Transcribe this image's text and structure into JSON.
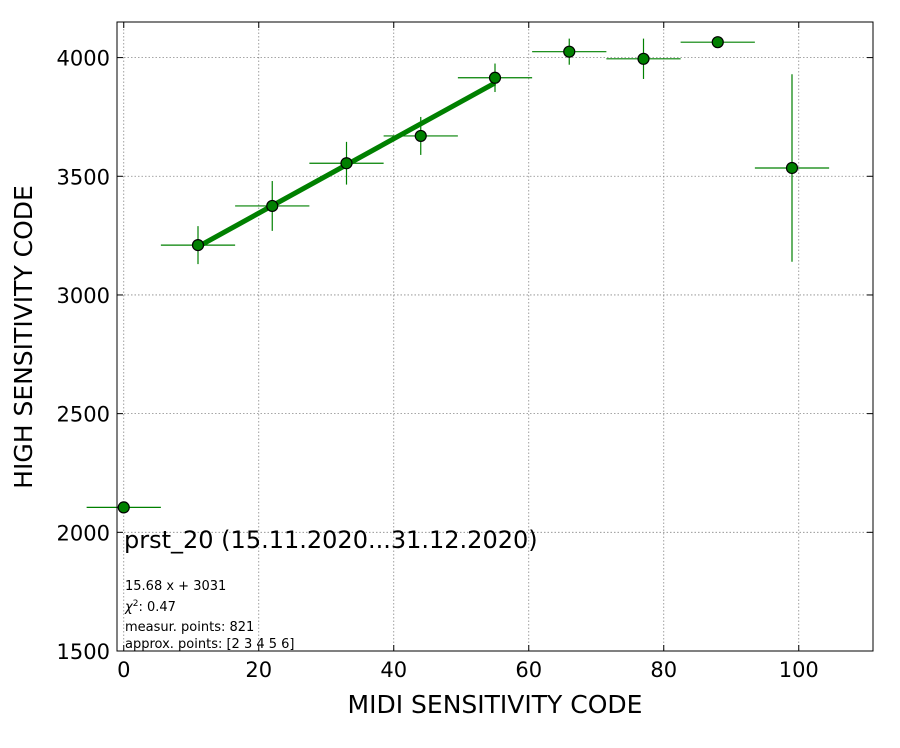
{
  "chart_data": {
    "type": "scatter",
    "xlabel": "MIDI SENSITIVITY CODE",
    "ylabel": "HIGH SENSITIVITY CODE",
    "xlim": [
      -1,
      111
    ],
    "ylim": [
      1500,
      4150
    ],
    "x_ticks": [
      0,
      20,
      40,
      60,
      80,
      100
    ],
    "y_ticks": [
      1500,
      2000,
      2500,
      3000,
      3500,
      4000
    ],
    "grid": true,
    "points": [
      {
        "x": 0,
        "y": 2105,
        "xerr": 5.5,
        "yerr": 0
      },
      {
        "x": 11,
        "y": 3210,
        "xerr": 5.5,
        "yerr": 80
      },
      {
        "x": 22,
        "y": 3375,
        "xerr": 5.5,
        "yerr": 105
      },
      {
        "x": 33,
        "y": 3555,
        "xerr": 5.5,
        "yerr": 90
      },
      {
        "x": 44,
        "y": 3670,
        "xerr": 5.5,
        "yerr": 80
      },
      {
        "x": 55,
        "y": 3915,
        "xerr": 5.5,
        "yerr": 60
      },
      {
        "x": 66,
        "y": 4025,
        "xerr": 5.5,
        "yerr": 55
      },
      {
        "x": 77,
        "y": 3995,
        "xerr": 5.5,
        "yerr": 85
      },
      {
        "x": 88,
        "y": 4065,
        "xerr": 5.5,
        "yerr": 0
      },
      {
        "x": 99,
        "y": 3535,
        "xerr": 5.5,
        "yerr": 395
      }
    ],
    "fit": {
      "slope": 15.68,
      "intercept": 3031,
      "x_from": 11,
      "x_to": 55
    },
    "colors": {
      "marker": "#008000",
      "errorbar": "#008000",
      "fit": "#008000",
      "marker_edge": "#000000"
    },
    "annotations": {
      "title_note": "prst_20 (15.11.2020...31.12.2020)",
      "fit_eq": "15.68 x + 3031",
      "chi2_label": "χ",
      "chi2_value": ": 0.47",
      "measur_points": "measur. points: 821",
      "approx_points": "approx. points: [2 3 4 5 6]"
    }
  }
}
